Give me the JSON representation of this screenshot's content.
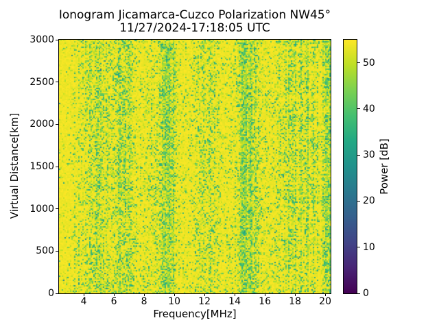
{
  "chart_data": {
    "type": "heatmap",
    "title": "Ionogram Jicamarca-Cuzco Polarization NW45°",
    "subtitle": "11/27/2024-17:18:05 UTC",
    "xlabel": "Frequency[MHz]",
    "ylabel": "Virtual Distance[km]",
    "colorbar_label": "Power [dB]",
    "xlim": [
      2.36,
      20.36
    ],
    "ylim": [
      0,
      3000
    ],
    "clim": [
      0,
      55
    ],
    "x_ticks": [
      4,
      6,
      8,
      10,
      12,
      14,
      16,
      18,
      20
    ],
    "y_ticks": [
      0,
      500,
      1000,
      1500,
      2000,
      2500,
      3000
    ],
    "colorbar_ticks": [
      0,
      10,
      20,
      30,
      40,
      50
    ],
    "grid": false,
    "legend": "none",
    "colormap": "viridis",
    "viridis_stops": [
      [
        0.0,
        "#440154"
      ],
      [
        0.1,
        "#482475"
      ],
      [
        0.2,
        "#414487"
      ],
      [
        0.3,
        "#355f8d"
      ],
      [
        0.4,
        "#2a788e"
      ],
      [
        0.5,
        "#21918c"
      ],
      [
        0.6,
        "#22a884"
      ],
      [
        0.7,
        "#44bf70"
      ],
      [
        0.8,
        "#7ad151"
      ],
      [
        0.9,
        "#bddf26"
      ],
      [
        1.0,
        "#fde725"
      ]
    ],
    "background_power_db": 54,
    "attenuated_power_db_range": [
      32,
      51
    ],
    "noise_base_probability": 0.05,
    "interference_bands": [
      {
        "center_mhz": 4.7,
        "width_mhz": 1.0,
        "strength": 0.4
      },
      {
        "center_mhz": 6.7,
        "width_mhz": 0.85,
        "strength": 0.45
      },
      {
        "center_mhz": 9.2,
        "width_mhz": 1.0,
        "strength": 0.3
      },
      {
        "center_mhz": 9.6,
        "width_mhz": 0.38,
        "strength": 0.6
      },
      {
        "center_mhz": 12.2,
        "width_mhz": 0.8,
        "strength": 0.34
      },
      {
        "center_mhz": 14.9,
        "width_mhz": 0.55,
        "strength": 0.62
      },
      {
        "center_mhz": 14.6,
        "width_mhz": 0.9,
        "strength": 0.28
      },
      {
        "center_mhz": 18.5,
        "width_mhz": 1.9,
        "strength": 0.4
      },
      {
        "center_mhz": 20.3,
        "width_mhz": 0.18,
        "strength": 0.7
      }
    ],
    "seed": 42
  }
}
